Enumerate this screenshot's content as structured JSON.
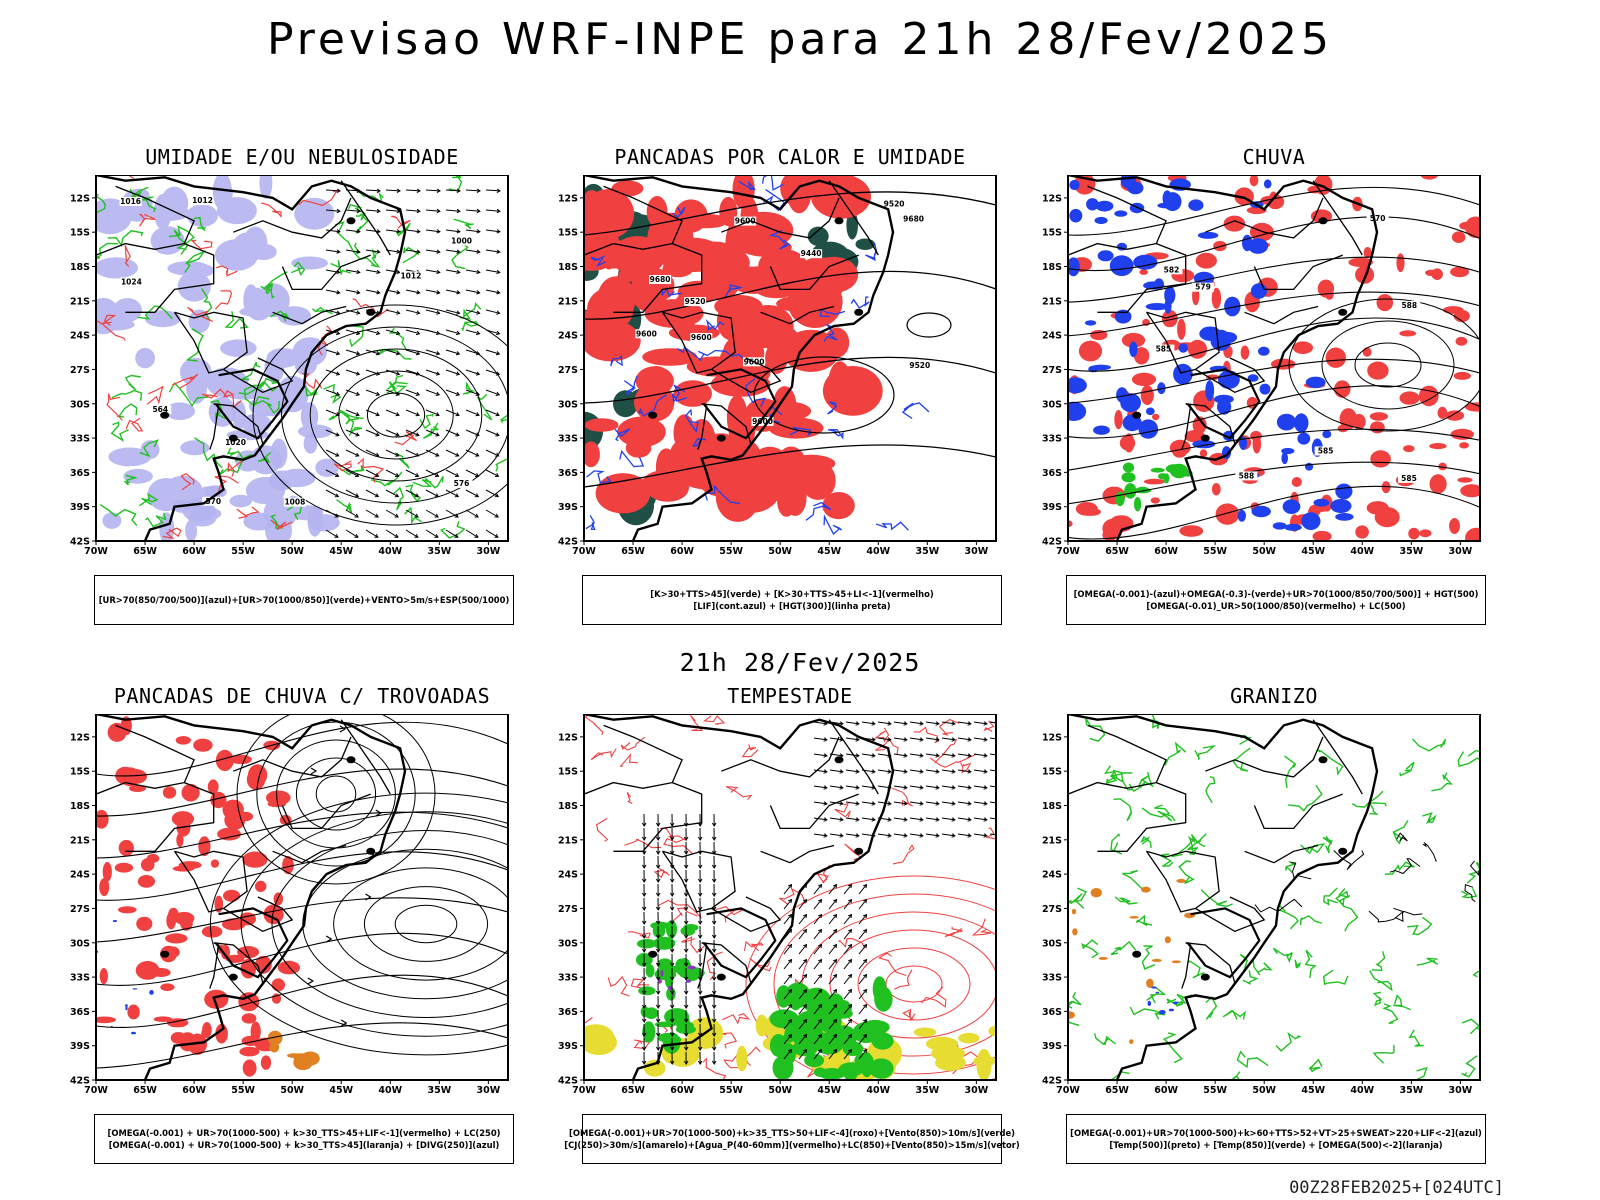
{
  "header": {
    "title": "Previsao WRF-INPE  para 21h 28/Fev/2025"
  },
  "mid_date": "21h 28/Fev/2025",
  "footer": {
    "stamp": "00Z28FEB2025+[024UTC]"
  },
  "axes": {
    "lat_labels": [
      "12S",
      "15S",
      "18S",
      "21S",
      "24S",
      "27S",
      "30S",
      "33S",
      "36S",
      "39S",
      "42S"
    ],
    "lon_labels": [
      "70W",
      "65W",
      "60W",
      "55W",
      "50W",
      "45W",
      "40W",
      "35W",
      "30W"
    ]
  },
  "colors": {
    "red": "#f04040",
    "green": "#20c020",
    "blue": "#2040ee",
    "lavender": "#b4b4f0",
    "darkgreen": "#1f4f45",
    "yellow": "#e6dc32",
    "purple": "#9030c0",
    "orange": "#e08020"
  },
  "panels": [
    {
      "id": "umidade",
      "title": "UMIDADE E/OU NEBULOSIDADE",
      "legend": [
        "[UR>70(850/700/500)](azul)+[UR>70(1000/850)](verde)+VENTO>5m/s+ESP(500/1000)"
      ],
      "contour_labels": [
        "1012",
        "1008",
        "1016",
        "1020",
        "1024",
        "576",
        "570",
        "564",
        "1012",
        "1000"
      ]
    },
    {
      "id": "pancadas_calor",
      "title": "PANCADAS POR CALOR E UMIDADE",
      "legend": [
        "[K>30+TTS>45](verde) + [K>30+TTS>45+LI<-1](vermelho)",
        "[LIF](cont.azul) + [HGT(300)](linha preta)"
      ],
      "contour_labels": [
        "9600",
        "9520",
        "9600",
        "9680",
        "9680",
        "9600",
        "9440",
        "9520",
        "9600",
        "9520",
        "9600"
      ]
    },
    {
      "id": "chuva",
      "title": "CHUVA",
      "legend": [
        "[OMEGA(-0.001)-(azul)+OMEGA(-0.3)-(verde)+UR>70(1000/850/700/500)] + HGT(500)",
        "[OMEGA(-0.01)_UR>50(1000/850)(vermelho) + LC(500)"
      ],
      "contour_labels": [
        "585",
        "585",
        "588",
        "588",
        "585",
        "582",
        "579",
        "570"
      ]
    },
    {
      "id": "trovoadas",
      "title": "PANCADAS DE CHUVA C/ TROVOADAS",
      "legend": [
        "[OMEGA(-0.001) + UR>70(1000-500) + k>30_TTS>45+LIF<-1](vermelho) + LC(250)",
        "[OMEGA(-0.001) + UR>70(1000-500) + k>30_TTS>45](laranja) + [DIVG(250)](azul)"
      ],
      "contour_labels": []
    },
    {
      "id": "tempestade",
      "title": "TEMPESTADE",
      "legend": [
        "[OMEGA(-0.001)+UR>70(1000-500)+k>35_TTS>50+LIF<-4](roxo)+[Vento(850)>10m/s](verde)",
        "[CJ(250)>30m/s](amarelo)+[Agua_P(40-60mm)](vermelho)+LC(850)+[Vento(850)>15m/s](vetor)"
      ],
      "contour_labels": []
    },
    {
      "id": "granizo",
      "title": "GRANIZO",
      "legend": [
        "[OMEGA(-0.001)+UR>70(1000-500)+k>60+TTS>52+VT>25+SWEAT>220+LIF<-2](azul)",
        "[Temp(500)](preto) + [Temp(850)](verde) + [OMEGA(500)<-2](laranja)"
      ],
      "contour_labels": []
    }
  ]
}
